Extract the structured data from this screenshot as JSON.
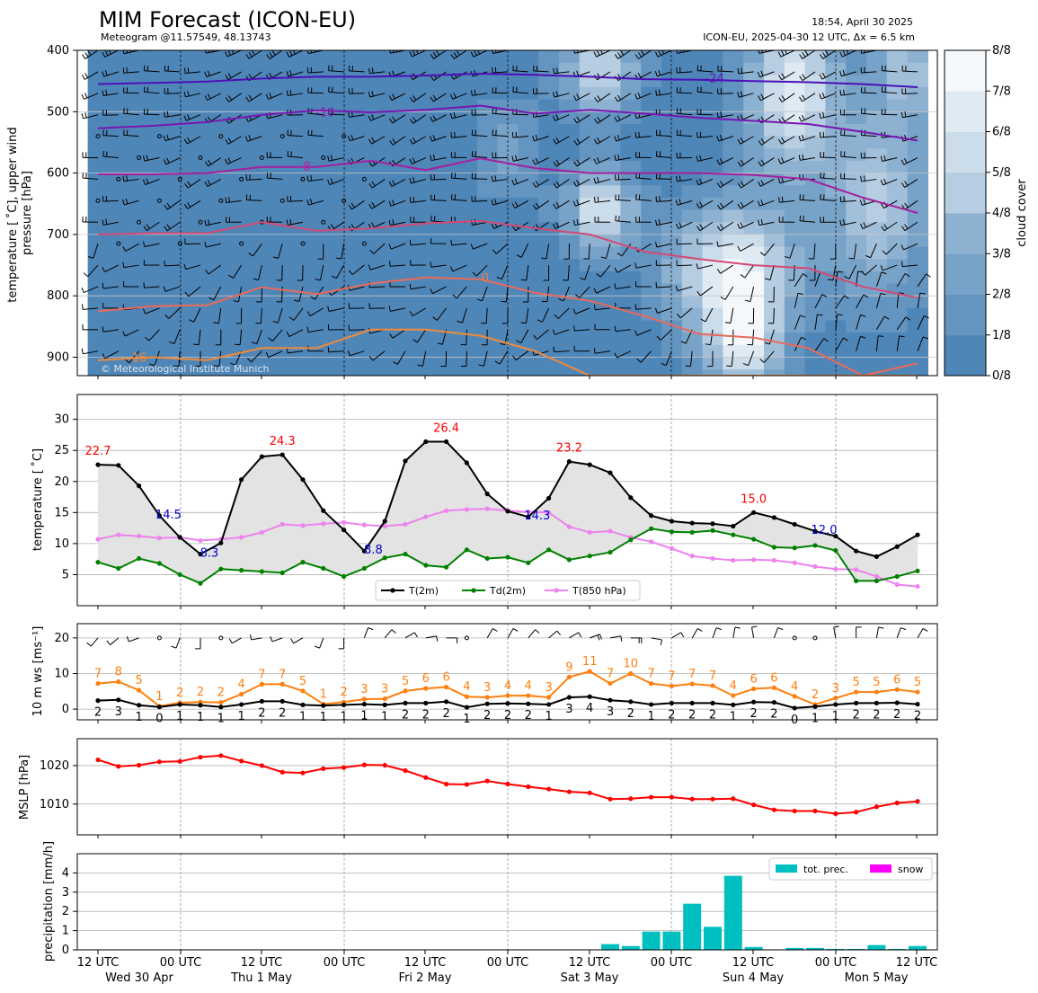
{
  "header": {
    "title": "MIM Forecast (ICON-EU)",
    "subtitle": "Meteogram @11.57549, 48.13743",
    "timestamp": "18:54, April 30 2025",
    "run_info": "ICON-EU, 2025-04-30 12 UTC, Δx = 6.5 km",
    "copyright": "© Meteorological Institute Munich"
  },
  "colors": {
    "t2m": "#000000",
    "td2m": "#008000",
    "t850": "#ee82ee",
    "max_label": "#ff0000",
    "min_label": "#0000cc",
    "gust": "#ff7f0e",
    "mean_wind": "#000000",
    "mslp": "#ff0000",
    "precip": "#00bfc0",
    "snow": "#ff00ff",
    "cloud_full": "#f4f8fb",
    "cloud_none": "#4f86b8"
  },
  "time_axis": {
    "tick_labels": [
      "12 UTC",
      "00 UTC",
      "12 UTC",
      "00 UTC",
      "12 UTC",
      "00 UTC",
      "12 UTC",
      "00 UTC",
      "12 UTC",
      "00 UTC",
      "12 UTC"
    ],
    "day_labels": [
      "Wed 30 Apr",
      "Thu 1 May",
      "Fri 2 May",
      "Sat 3 May",
      "Sun 4 May",
      "Mon 5 May"
    ]
  },
  "chart_data": [
    {
      "type": "heatmap",
      "ylabel": "temperature [ ˚C], upper wind\npressure [hPa]",
      "ylim": [
        930,
        400
      ],
      "yticks": [
        "400",
        "500",
        "600",
        "700",
        "800",
        "900"
      ],
      "colorbar_label": "cloud cover",
      "colorbar_ticks": [
        "0/8",
        "1/8",
        "2/8",
        "3/8",
        "4/8",
        "5/8",
        "6/8",
        "7/8",
        "8/8"
      ],
      "isotherm_labels": [
        {
          "text": "-24",
          "color": "#5b14b0",
          "level_hpa": 445
        },
        {
          "text": "-16",
          "color": "#8a1fae",
          "level_hpa": 500
        },
        {
          "text": "-8",
          "color": "#b4269a",
          "level_hpa": 588
        },
        {
          "text": "0",
          "color": "#f07b54",
          "level_hpa": 770
        },
        {
          "text": "16",
          "color": "#f08a3a",
          "level_hpa": 900
        }
      ]
    },
    {
      "type": "line",
      "ylabel": "temperature [ ˚C]",
      "ylim": [
        0,
        34
      ],
      "yticks": [
        "5",
        "10",
        "15",
        "20",
        "25",
        "30"
      ],
      "series": [
        {
          "name": "T(2m)",
          "values": [
            22.7,
            22.6,
            19.3,
            14.5,
            11.0,
            8.3,
            10.1,
            20.3,
            24.0,
            24.3,
            20.3,
            15.3,
            12.2,
            8.8,
            13.6,
            23.3,
            26.4,
            26.4,
            23.0,
            18.0,
            15.2,
            14.3,
            17.3,
            23.2,
            22.7,
            21.4,
            17.4,
            14.5,
            13.6,
            13.3,
            13.2,
            12.8,
            15.0,
            14.2,
            13.1,
            12.0,
            11.2,
            8.8,
            7.9,
            9.5,
            11.4
          ]
        },
        {
          "name": "Td(2m)",
          "values": [
            7.0,
            6.0,
            7.6,
            6.8,
            5.0,
            3.6,
            5.9,
            5.7,
            5.5,
            5.3,
            7.0,
            6.0,
            4.7,
            6.0,
            7.7,
            8.3,
            6.5,
            6.2,
            9.0,
            7.6,
            7.8,
            6.9,
            9.0,
            7.4,
            8.0,
            8.6,
            10.6,
            12.4,
            11.9,
            11.8,
            12.1,
            11.4,
            10.7,
            9.4,
            9.3,
            9.7,
            8.9,
            4.0,
            4.0,
            4.7,
            5.6
          ]
        },
        {
          "name": "T(850 hPa)",
          "values": [
            10.7,
            11.4,
            11.2,
            10.9,
            11.0,
            10.5,
            10.7,
            11.0,
            11.8,
            13.1,
            12.9,
            13.2,
            13.4,
            13.0,
            12.8,
            13.1,
            14.3,
            15.3,
            15.5,
            15.6,
            15.3,
            15.1,
            15.0,
            12.7,
            11.8,
            12.0,
            11.0,
            10.3,
            9.2,
            8.0,
            7.6,
            7.3,
            7.4,
            7.3,
            6.9,
            6.3,
            5.9,
            5.8,
            4.7,
            3.4,
            3.1
          ]
        }
      ],
      "annotations": [
        {
          "text": "22.7",
          "kind": "max",
          "index": 0,
          "value": 22.7
        },
        {
          "text": "14.5",
          "kind": "min",
          "index": 3,
          "value": 14.5
        },
        {
          "text": "8.3",
          "kind": "min",
          "index": 5,
          "value": 8.3
        },
        {
          "text": "24.3",
          "kind": "max",
          "index": 9,
          "value": 24.3
        },
        {
          "text": "8.8",
          "kind": "min",
          "index": 13,
          "value": 8.8
        },
        {
          "text": "26.4",
          "kind": "max",
          "index": 17,
          "value": 26.4
        },
        {
          "text": "14.3",
          "kind": "min",
          "index": 21,
          "value": 14.3
        },
        {
          "text": "23.2",
          "kind": "max",
          "index": 23,
          "value": 23.2
        },
        {
          "text": "15.0",
          "kind": "max",
          "index": 32,
          "value": 15.0
        },
        {
          "text": "12.0",
          "kind": "min",
          "index": 35,
          "value": 12.0
        }
      ],
      "legend": "bottom-center"
    },
    {
      "type": "line",
      "ylabel": "10 m ws [ms⁻¹]",
      "ylim": [
        -3,
        24
      ],
      "yticks": [
        "0",
        "10",
        "20"
      ],
      "series": [
        {
          "values": [
            7.2,
            7.7,
            5.3,
            0.8,
            1.8,
            2.0,
            1.9,
            4.2,
            7.0,
            7.0,
            5.1,
            1.4,
            2.0,
            2.8,
            2.9,
            5.1,
            5.8,
            6.2,
            3.5,
            3.3,
            3.8,
            3.8,
            3.3,
            9.0,
            10.6,
            7.2,
            10.0,
            7.2,
            6.5,
            7.1,
            6.6,
            3.8,
            5.7,
            6.0,
            3.6,
            1.3,
            3.1,
            4.8,
            4.8,
            5.5,
            4.8
          ]
        },
        {
          "values": [
            2.4,
            2.6,
            1.1,
            0.6,
            1.3,
            1.1,
            0.6,
            1.3,
            2.2,
            2.2,
            1.2,
            1.0,
            1.2,
            1.4,
            1.2,
            1.7,
            1.7,
            2.1,
            0.5,
            1.5,
            1.6,
            1.5,
            1.3,
            3.3,
            3.5,
            2.5,
            2.1,
            1.3,
            1.7,
            1.7,
            1.7,
            1.2,
            2.0,
            1.9,
            0.3,
            0.7,
            1.3,
            1.7,
            1.7,
            1.8,
            1.4
          ]
        }
      ],
      "gust_labels": [
        "7",
        "8",
        "5",
        "1",
        "2",
        "2",
        "2",
        "4",
        "7",
        "7",
        "5",
        "1",
        "2",
        "3",
        "3",
        "5",
        "6",
        "6",
        "4",
        "3",
        "4",
        "4",
        "3",
        "9",
        "11",
        "7",
        "10",
        "7",
        "7",
        "7",
        "7",
        "4",
        "6",
        "6",
        "4",
        "2",
        "3",
        "5",
        "5",
        "6",
        "5"
      ],
      "mean_labels": [
        "2",
        "3",
        "1",
        "0",
        "1",
        "1",
        "1",
        "1",
        "2",
        "2",
        "1",
        "1",
        "1",
        "1",
        "1",
        "2",
        "2",
        "2",
        "1",
        "2",
        "2",
        "2",
        "1",
        "3",
        "4",
        "3",
        "2",
        "1",
        "2",
        "2",
        "2",
        "1",
        "2",
        "2",
        "0",
        "1",
        "1",
        "2",
        "2",
        "2",
        "2"
      ],
      "wind_dir_deg": [
        220,
        230,
        250,
        270,
        200,
        180,
        210,
        240,
        260,
        250,
        240,
        200,
        180,
        20,
        40,
        60,
        80,
        90,
        200,
        30,
        30,
        40,
        50,
        60,
        70,
        80,
        90,
        100,
        60,
        30,
        20,
        10,
        350,
        20,
        40,
        330,
        350,
        0,
        10,
        20,
        30
      ]
    },
    {
      "type": "line",
      "ylabel": "MSLP [hPa]",
      "ylim": [
        1002,
        1027
      ],
      "yticks": [
        "1010",
        "1020"
      ],
      "series": [
        {
          "values": [
            1021.5,
            1019.8,
            1020.1,
            1021.0,
            1021.1,
            1022.2,
            1022.6,
            1021.2,
            1020.0,
            1018.3,
            1018.1,
            1019.2,
            1019.5,
            1020.2,
            1020.1,
            1018.7,
            1016.9,
            1015.2,
            1015.1,
            1016.0,
            1015.2,
            1014.5,
            1013.9,
            1013.2,
            1012.9,
            1011.3,
            1011.4,
            1011.8,
            1011.8,
            1011.3,
            1011.3,
            1011.4,
            1009.8,
            1008.5,
            1008.2,
            1008.2,
            1007.5,
            1007.9,
            1009.3,
            1010.3,
            1010.7
          ]
        }
      ]
    },
    {
      "type": "bar",
      "ylabel": "precipitation [mm/h]",
      "ylim": [
        0,
        5
      ],
      "yticks": [
        "0",
        "1",
        "2",
        "3",
        "4"
      ],
      "series": [
        {
          "name": "tot. prec.",
          "values": [
            0,
            0,
            0,
            0,
            0,
            0,
            0,
            0,
            0,
            0,
            0,
            0,
            0,
            0,
            0,
            0,
            0,
            0,
            0,
            0,
            0,
            0,
            0,
            0,
            0,
            0.3,
            0.2,
            0.95,
            0.95,
            2.4,
            1.2,
            3.85,
            0.15,
            0,
            0.1,
            0.1,
            0.05,
            0.05,
            0.25,
            0.05,
            0.2
          ]
        },
        {
          "name": "snow",
          "values": [
            0,
            0,
            0,
            0,
            0,
            0,
            0,
            0,
            0,
            0,
            0,
            0,
            0,
            0,
            0,
            0,
            0,
            0,
            0,
            0,
            0,
            0,
            0,
            0,
            0,
            0,
            0,
            0,
            0,
            0,
            0,
            0,
            0,
            0,
            0,
            0,
            0,
            0,
            0,
            0,
            0
          ]
        }
      ],
      "legend": "top-right"
    }
  ]
}
